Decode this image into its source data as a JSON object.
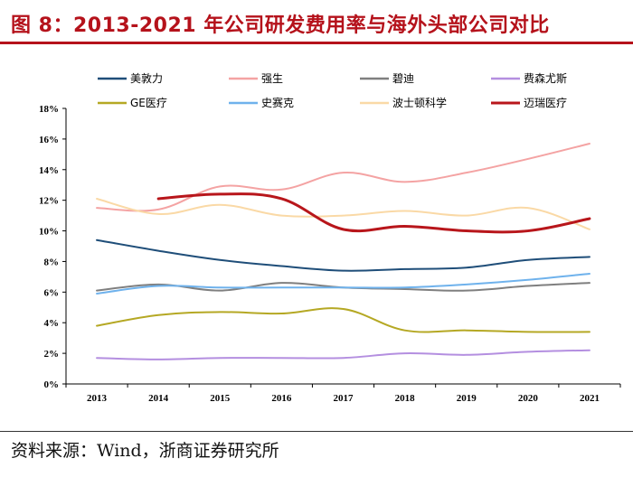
{
  "figure": {
    "title": "图 8：2013-2021 年公司研发费用率与海外头部公司对比",
    "source": "资料来源：Wind，浙商证券研究所"
  },
  "chart_data": {
    "type": "line",
    "title": "图 8：2013-2021 年公司研发费用率与海外头部公司对比",
    "xlabel": "",
    "ylabel": "",
    "categories": [
      "2013",
      "2014",
      "2015",
      "2016",
      "2017",
      "2018",
      "2019",
      "2020",
      "2021"
    ],
    "ylim": [
      0,
      18
    ],
    "yticks": [
      "0%",
      "2%",
      "4%",
      "6%",
      "8%",
      "10%",
      "12%",
      "14%",
      "16%",
      "18%"
    ],
    "grid": false,
    "legend_position": "top",
    "series": [
      {
        "name": "美敦力",
        "color": "#1f4e79",
        "values": [
          9.4,
          8.7,
          8.1,
          7.7,
          7.4,
          7.5,
          7.6,
          8.1,
          8.3
        ]
      },
      {
        "name": "强生",
        "color": "#f4a3a3",
        "values": [
          11.5,
          11.4,
          12.9,
          12.7,
          13.8,
          13.2,
          13.8,
          14.7,
          15.7
        ]
      },
      {
        "name": "碧迪",
        "color": "#7f7f7f",
        "values": [
          6.1,
          6.5,
          6.1,
          6.6,
          6.3,
          6.2,
          6.1,
          6.4,
          6.6
        ]
      },
      {
        "name": "费森尤斯",
        "color": "#b48fe0",
        "values": [
          1.7,
          1.6,
          1.7,
          1.7,
          1.7,
          2.0,
          1.9,
          2.1,
          2.2
        ]
      },
      {
        "name": "GE医疗",
        "color": "#b5a824",
        "values": [
          3.8,
          4.5,
          4.7,
          4.6,
          4.9,
          3.5,
          3.5,
          3.4,
          3.4
        ]
      },
      {
        "name": "史赛克",
        "color": "#6fb2ec",
        "values": [
          5.9,
          6.4,
          6.3,
          6.3,
          6.3,
          6.3,
          6.5,
          6.8,
          7.2
        ]
      },
      {
        "name": "波士顿科学",
        "color": "#fad9a6",
        "values": [
          12.1,
          11.1,
          11.7,
          11.0,
          11.0,
          11.3,
          11.0,
          11.5,
          10.1
        ]
      },
      {
        "name": "迈瑞医疗",
        "color": "#b8161b",
        "values": [
          null,
          12.1,
          12.4,
          12.1,
          10.1,
          10.3,
          10.0,
          10.0,
          10.8
        ]
      }
    ]
  }
}
